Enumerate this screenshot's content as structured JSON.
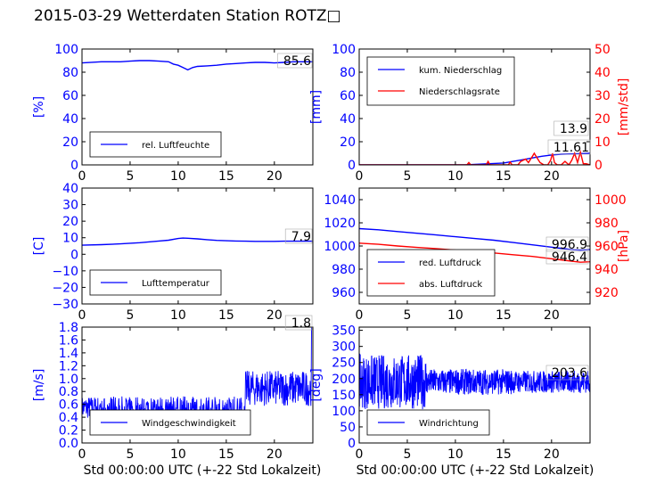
{
  "title": "2015-03-29 Wetterdaten Station ROTZ□",
  "chart_data": [
    {
      "id": "humidity",
      "type": "line",
      "xlim": [
        0,
        24
      ],
      "xticks": [
        0,
        5,
        10,
        15,
        20
      ],
      "left_axis": {
        "label": "[%]",
        "ylim": [
          0,
          100
        ],
        "ticks": [
          0,
          20,
          40,
          60,
          80,
          100
        ],
        "color": "#0000ff"
      },
      "legend": {
        "placement": "lower-left"
      },
      "series": [
        {
          "name": "rel. Luftfeuchte",
          "color": "#0000ff",
          "axis": "left",
          "x": [
            0,
            2,
            4,
            5,
            6,
            7,
            8,
            9,
            9.5,
            10,
            10.5,
            11,
            11.5,
            12,
            13,
            14,
            15,
            16,
            17,
            18,
            19,
            20,
            21,
            22,
            23,
            24
          ],
          "y": [
            88,
            89,
            89,
            89.5,
            90,
            90,
            89.5,
            89,
            87,
            86,
            84,
            82,
            84,
            85,
            85.5,
            86,
            87,
            87.5,
            88,
            88.5,
            88.5,
            88,
            88.5,
            89,
            89,
            89
          ]
        }
      ],
      "annotation": "85.6",
      "grid": false
    },
    {
      "id": "precipitation",
      "type": "line",
      "xlim": [
        0,
        24
      ],
      "xticks": [
        0,
        5,
        10,
        15,
        20
      ],
      "left_axis": {
        "label": "[mm]",
        "ylim": [
          0,
          100
        ],
        "ticks": [
          0,
          20,
          40,
          60,
          80,
          100
        ],
        "color": "#0000ff"
      },
      "right_axis": {
        "label": "[mm/std]",
        "ylim": [
          0,
          50
        ],
        "ticks": [
          0,
          10,
          20,
          30,
          40,
          50
        ],
        "color": "#ff0000"
      },
      "legend": {
        "placement": "top-left"
      },
      "series": [
        {
          "name": "kum. Niederschlag",
          "color": "#0000ff",
          "axis": "left",
          "x": [
            0,
            11,
            12,
            13,
            14,
            15,
            16,
            17,
            18,
            19,
            20,
            21,
            22,
            23,
            24
          ],
          "y": [
            0,
            0.1,
            0.4,
            0.8,
            1.2,
            1.6,
            3,
            4.5,
            6,
            7.5,
            8.5,
            9.2,
            9.5,
            9.8,
            10
          ]
        },
        {
          "name": "Niederschlagsrate",
          "color": "#ff0000",
          "axis": "right",
          "x": [
            0,
            11.2,
            11.4,
            11.6,
            13.2,
            13.4,
            13.6,
            15.5,
            15.7,
            15.9,
            16.5,
            16.8,
            17.3,
            17.6,
            17.9,
            18.2,
            18.5,
            18.8,
            19.2,
            19.6,
            19.9,
            20.1,
            20.3,
            20.6,
            21,
            21.4,
            21.8,
            22.1,
            22.4,
            22.7,
            23,
            23.3,
            23.6,
            24
          ],
          "y": [
            0,
            0,
            1,
            0,
            0,
            1.5,
            0,
            0,
            1.2,
            0,
            0,
            1.5,
            2.5,
            1,
            3,
            5,
            3,
            1,
            0,
            0,
            2,
            5,
            1,
            0,
            0,
            1.5,
            0,
            2,
            5,
            1,
            5.5,
            0.5,
            0.5,
            0
          ]
        }
      ],
      "annotations": [
        "13.9",
        "11.61"
      ],
      "grid": false
    },
    {
      "id": "temperature",
      "type": "line",
      "xlim": [
        0,
        24
      ],
      "xticks": [
        0,
        5,
        10,
        15,
        20
      ],
      "left_axis": {
        "label": "[C]",
        "ylim": [
          -30,
          40
        ],
        "ticks": [
          -30,
          -20,
          -10,
          0,
          10,
          20,
          30,
          40
        ],
        "color": "#0000ff"
      },
      "legend": {
        "placement": "lower-left"
      },
      "series": [
        {
          "name": "Lufttemperatur",
          "color": "#0000ff",
          "axis": "left",
          "x": [
            0,
            2,
            4,
            6,
            8,
            9,
            10,
            10.5,
            11,
            12,
            13,
            14,
            15,
            16,
            17,
            18,
            19,
            20,
            21,
            22,
            23,
            24
          ],
          "y": [
            5.5,
            5.8,
            6.3,
            7,
            8,
            8.5,
            9.5,
            9.8,
            9.7,
            9.3,
            8.8,
            8.4,
            8.2,
            8,
            7.9,
            7.8,
            7.8,
            7.8,
            7.9,
            7.9,
            7.9,
            7.9
          ]
        }
      ],
      "annotation": "7.9",
      "grid": false
    },
    {
      "id": "pressure",
      "type": "line",
      "xlim": [
        0,
        24
      ],
      "xticks": [
        0,
        5,
        10,
        15,
        20
      ],
      "left_axis": {
        "label": "",
        "ylim": [
          950,
          1050
        ],
        "ticks": [
          960,
          980,
          1000,
          1020,
          1040
        ],
        "color": "#0000ff"
      },
      "right_axis": {
        "label": "[hPa]",
        "ylim": [
          910,
          1010
        ],
        "ticks": [
          920,
          940,
          960,
          980,
          1000
        ],
        "color": "#ff0000"
      },
      "legend": {
        "placement": "lower-left"
      },
      "series": [
        {
          "name": "red. Luftdruck",
          "color": "#0000ff",
          "axis": "left",
          "x": [
            0,
            2,
            4,
            6,
            8,
            10,
            12,
            14,
            16,
            18,
            20,
            22,
            23,
            24
          ],
          "y": [
            1015,
            1014,
            1012.5,
            1011,
            1009.5,
            1008,
            1006.5,
            1005,
            1003,
            1001,
            999,
            997,
            996.5,
            997
          ]
        },
        {
          "name": "abs. Luftdruck",
          "color": "#ff0000",
          "axis": "right",
          "x": [
            0,
            2,
            4,
            6,
            8,
            10,
            12,
            14,
            16,
            18,
            20,
            22,
            23,
            24
          ],
          "y": [
            962.5,
            961.5,
            960,
            958.8,
            957.8,
            956.5,
            955.3,
            954,
            952.5,
            951,
            949,
            947,
            946,
            946.4
          ]
        }
      ],
      "annotations": [
        "996.9",
        "946.4"
      ],
      "grid": false
    },
    {
      "id": "wind_speed",
      "type": "line",
      "xlim": [
        0,
        24
      ],
      "xticks": [
        0,
        5,
        10,
        15,
        20
      ],
      "left_axis": {
        "label": "[m/s]",
        "ylim": [
          0,
          1.8
        ],
        "ticks": [
          0.0,
          0.2,
          0.4,
          0.6,
          0.8,
          1.0,
          1.2,
          1.4,
          1.6,
          1.8
        ],
        "color": "#0000ff"
      },
      "legend": {
        "placement": "lower-left"
      },
      "series": [
        {
          "name": "Windgeschwindigkeit",
          "color": "#0000ff",
          "axis": "left",
          "note": "noisy signal",
          "base_level": 0.55,
          "late_level": 0.85,
          "peak": 1.8
        }
      ],
      "annotation": "1.8",
      "grid": false
    },
    {
      "id": "wind_dir",
      "type": "line",
      "xlim": [
        0,
        24
      ],
      "xticks": [
        0,
        5,
        10,
        15,
        20
      ],
      "left_axis": {
        "label": "[deg]",
        "ylim": [
          0,
          360
        ],
        "ticks": [
          0,
          50,
          100,
          150,
          200,
          250,
          300,
          350
        ],
        "color": "#0000ff"
      },
      "legend": {
        "placement": "lower-left"
      },
      "series": [
        {
          "name": "Windrichtung",
          "color": "#0000ff",
          "axis": "left",
          "note": "noisy signal",
          "mean": 190
        }
      ],
      "annotation": "203.6",
      "grid": false
    }
  ],
  "xlabel": "Std 00:00:00 UTC (+-22 Std Lokalzeit)"
}
